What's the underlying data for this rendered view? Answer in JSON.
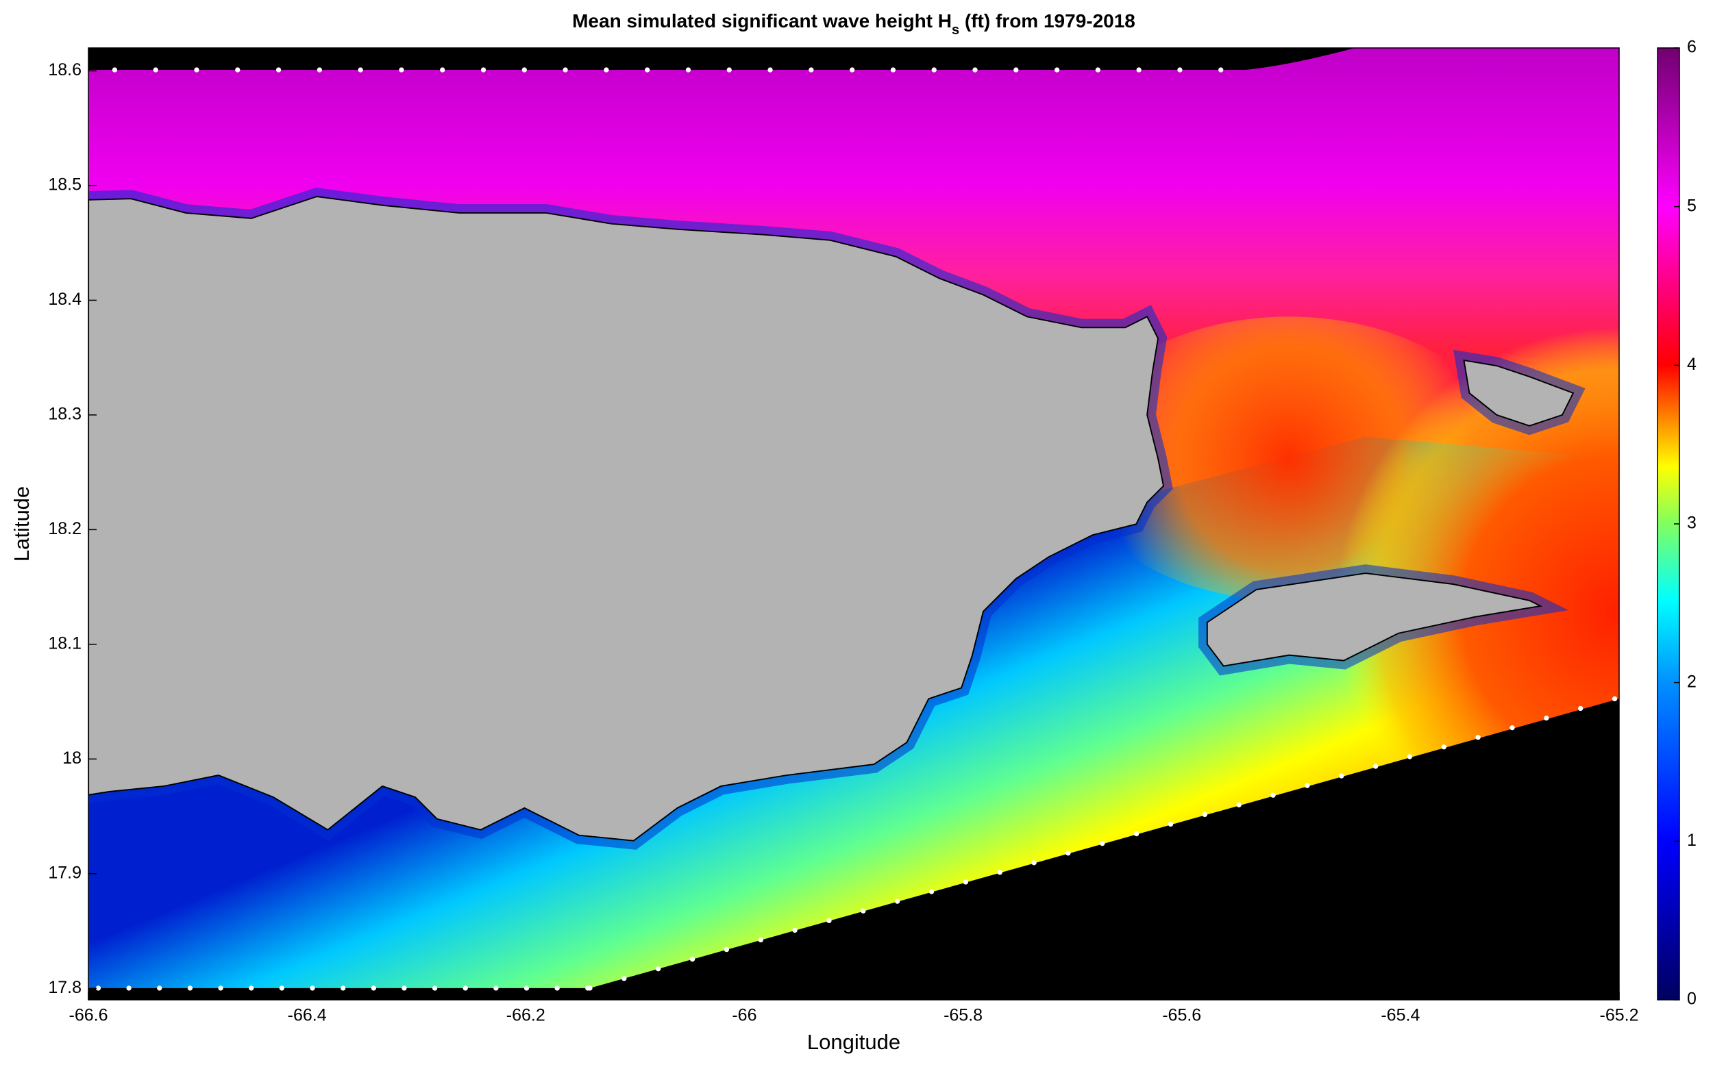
{
  "chart_data": {
    "type": "map",
    "title": [
      "Mean simulated significant wave height H",
      "s",
      " (ft) from 1979-2018"
    ],
    "x_label": "Longitude",
    "y_label": "Latitude",
    "xlim": [
      -66.6,
      -65.2
    ],
    "xticks": [
      -66.6,
      -66.4,
      -66.2,
      -66,
      -65.8,
      -65.6,
      -65.4,
      -65.2
    ],
    "ylim": [
      17.79,
      18.62
    ],
    "yticks": [
      17.8,
      17.9,
      18,
      18.1,
      18.2,
      18.3,
      18.4,
      18.5,
      18.6
    ],
    "colorbar": {
      "clim": [
        0,
        6
      ],
      "ticks": [
        0,
        1,
        2,
        3,
        4,
        5,
        6
      ]
    }
  }
}
